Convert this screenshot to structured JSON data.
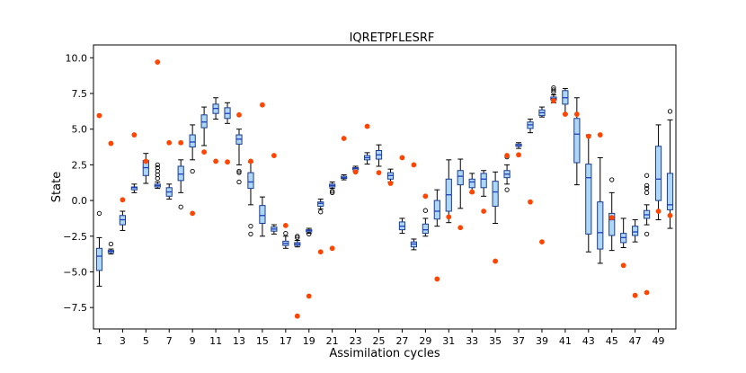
{
  "chart_data": {
    "type": "box",
    "title": "IQRETPFLESRF",
    "xlabel": "Assimilation cycles",
    "ylabel": "State",
    "ylim": [
      -9.0,
      10.9
    ],
    "xlim": [
      0.5,
      50.5
    ],
    "yticks": [
      -7.5,
      -5.0,
      -2.5,
      0.0,
      2.5,
      5.0,
      7.5,
      10.0
    ],
    "ytick_labels": [
      "−7.5",
      "−5.0",
      "−2.5",
      "0.0",
      "2.5",
      "5.0",
      "7.5",
      "10.0"
    ],
    "xticks": [
      1,
      3,
      5,
      7,
      9,
      11,
      13,
      15,
      17,
      19,
      21,
      23,
      25,
      27,
      29,
      31,
      33,
      35,
      37,
      39,
      41,
      43,
      45,
      47,
      49
    ],
    "xtick_labels": [
      "1",
      "3",
      "5",
      "7",
      "9",
      "11",
      "13",
      "15",
      "17",
      "19",
      "21",
      "23",
      "25",
      "27",
      "29",
      "31",
      "33",
      "35",
      "37",
      "39",
      "41",
      "43",
      "45",
      "47",
      "49"
    ],
    "colors": {
      "box_fill": "#aed6f5",
      "box_edge": "#1c3d8f",
      "median": "#1f3fbf",
      "whisker": "#000000",
      "truth": "#ff4500"
    },
    "boxes": [
      {
        "cycle": 1,
        "whislo": -6.0,
        "q1": -4.9,
        "median": -3.9,
        "q3": -3.35,
        "whishi": -2.6,
        "fliers": [
          -0.9
        ]
      },
      {
        "cycle": 2,
        "whislo": -3.75,
        "q1": -3.65,
        "median": -3.55,
        "q3": -3.5,
        "whishi": -3.4,
        "fliers": [
          -3.05
        ]
      },
      {
        "cycle": 3,
        "whislo": -2.1,
        "q1": -1.7,
        "median": -1.35,
        "q3": -1.05,
        "whishi": -0.75,
        "fliers": []
      },
      {
        "cycle": 4,
        "whislo": 0.55,
        "q1": 0.75,
        "median": 0.9,
        "q3": 0.95,
        "whishi": 1.15,
        "fliers": []
      },
      {
        "cycle": 5,
        "whislo": 1.2,
        "q1": 1.75,
        "median": 2.3,
        "q3": 2.8,
        "whishi": 3.3,
        "fliers": []
      },
      {
        "cycle": 6,
        "whislo": 0.85,
        "q1": 0.95,
        "median": 1.05,
        "q3": 1.15,
        "whishi": 1.3,
        "fliers": [
          1.55,
          1.8,
          2.05,
          2.3,
          2.5
        ]
      },
      {
        "cycle": 7,
        "whislo": 0.1,
        "q1": 0.3,
        "median": 0.6,
        "q3": 0.9,
        "whishi": 1.15,
        "fliers": []
      },
      {
        "cycle": 8,
        "whislo": 0.55,
        "q1": 1.4,
        "median": 1.85,
        "q3": 2.4,
        "whishi": 2.85,
        "fliers": [
          -0.45
        ]
      },
      {
        "cycle": 9,
        "whislo": 2.85,
        "q1": 3.75,
        "median": 4.1,
        "q3": 4.6,
        "whishi": 5.3,
        "fliers": [
          2.05
        ]
      },
      {
        "cycle": 10,
        "whislo": 3.85,
        "q1": 5.1,
        "median": 5.5,
        "q3": 6.0,
        "whishi": 6.55,
        "fliers": []
      },
      {
        "cycle": 11,
        "whislo": 5.7,
        "q1": 6.1,
        "median": 6.45,
        "q3": 6.75,
        "whishi": 7.2,
        "fliers": []
      },
      {
        "cycle": 12,
        "whislo": 5.4,
        "q1": 5.75,
        "median": 6.1,
        "q3": 6.5,
        "whishi": 6.85,
        "fliers": []
      },
      {
        "cycle": 13,
        "whislo": 2.5,
        "q1": 3.95,
        "median": 4.3,
        "q3": 4.6,
        "whishi": 5.0,
        "fliers": [
          1.3,
          1.95,
          2.05
        ]
      },
      {
        "cycle": 14,
        "whislo": -0.3,
        "q1": 0.85,
        "median": 1.3,
        "q3": 1.95,
        "whishi": 2.7,
        "fliers": [
          -1.8,
          -2.35
        ]
      },
      {
        "cycle": 15,
        "whislo": -2.5,
        "q1": -1.6,
        "median": -1.05,
        "q3": -0.35,
        "whishi": 0.25,
        "fliers": []
      },
      {
        "cycle": 16,
        "whislo": -2.35,
        "q1": -2.15,
        "median": -2.0,
        "q3": -1.85,
        "whishi": -1.7,
        "fliers": []
      },
      {
        "cycle": 17,
        "whislo": -3.35,
        "q1": -3.15,
        "median": -3.0,
        "q3": -2.85,
        "whishi": -2.5,
        "fliers": [
          -2.3
        ]
      },
      {
        "cycle": 18,
        "whislo": -3.25,
        "q1": -3.15,
        "median": -3.05,
        "q3": -2.95,
        "whishi": -2.8,
        "fliers": [
          -2.6,
          -2.5
        ]
      },
      {
        "cycle": 19,
        "whislo": -2.3,
        "q1": -2.2,
        "median": -2.1,
        "q3": -2.05,
        "whishi": -1.95,
        "fliers": [
          -2.35
        ]
      },
      {
        "cycle": 20,
        "whislo": -0.6,
        "q1": -0.4,
        "median": -0.2,
        "q3": -0.1,
        "whishi": 0.1,
        "fliers": [
          -0.8
        ]
      },
      {
        "cycle": 21,
        "whislo": 0.85,
        "q1": 0.95,
        "median": 1.05,
        "q3": 1.15,
        "whishi": 1.3,
        "fliers": [
          0.55,
          0.65
        ]
      },
      {
        "cycle": 22,
        "whislo": 1.45,
        "q1": 1.55,
        "median": 1.6,
        "q3": 1.7,
        "whishi": 1.8,
        "fliers": []
      },
      {
        "cycle": 23,
        "whislo": 2.05,
        "q1": 2.15,
        "median": 2.25,
        "q3": 2.3,
        "whishi": 2.4,
        "fliers": []
      },
      {
        "cycle": 24,
        "whislo": 2.55,
        "q1": 2.85,
        "median": 3.0,
        "q3": 3.15,
        "whishi": 3.35,
        "fliers": []
      },
      {
        "cycle": 25,
        "whislo": 2.4,
        "q1": 2.9,
        "median": 3.2,
        "q3": 3.5,
        "whishi": 3.9,
        "fliers": []
      },
      {
        "cycle": 26,
        "whislo": 1.3,
        "q1": 1.5,
        "median": 1.75,
        "q3": 1.95,
        "whishi": 2.2,
        "fliers": []
      },
      {
        "cycle": 27,
        "whislo": -2.3,
        "q1": -2.05,
        "median": -1.8,
        "q3": -1.5,
        "whishi": -1.25,
        "fliers": []
      },
      {
        "cycle": 28,
        "whislo": -3.45,
        "q1": -3.25,
        "median": -3.05,
        "q3": -2.9,
        "whishi": -2.7,
        "fliers": []
      },
      {
        "cycle": 29,
        "whislo": -2.5,
        "q1": -2.3,
        "median": -2.05,
        "q3": -1.65,
        "whishi": -1.25,
        "fliers": [
          -0.7
        ]
      },
      {
        "cycle": 30,
        "whislo": -1.8,
        "q1": -1.3,
        "median": -0.75,
        "q3": 0.0,
        "whishi": 0.75,
        "fliers": []
      },
      {
        "cycle": 31,
        "whislo": -1.55,
        "q1": -0.75,
        "median": 0.4,
        "q3": 1.5,
        "whishi": 2.85,
        "fliers": []
      },
      {
        "cycle": 32,
        "whislo": -0.55,
        "q1": 1.1,
        "median": 1.7,
        "q3": 2.1,
        "whishi": 2.9,
        "fliers": []
      },
      {
        "cycle": 33,
        "whislo": 0.55,
        "q1": 0.9,
        "median": 1.3,
        "q3": 1.5,
        "whishi": 1.9,
        "fliers": []
      },
      {
        "cycle": 34,
        "whislo": 0.3,
        "q1": 0.9,
        "median": 1.5,
        "q3": 1.9,
        "whishi": 2.1,
        "fliers": []
      },
      {
        "cycle": 35,
        "whislo": -1.6,
        "q1": -0.4,
        "median": 0.6,
        "q3": 1.35,
        "whishi": 2.0,
        "fliers": []
      },
      {
        "cycle": 36,
        "whislo": 1.15,
        "q1": 1.6,
        "median": 1.85,
        "q3": 2.1,
        "whishi": 2.5,
        "fliers": [
          0.75,
          3.05
        ]
      },
      {
        "cycle": 37,
        "whislo": 3.65,
        "q1": 3.8,
        "median": 3.85,
        "q3": 3.95,
        "whishi": 4.05,
        "fliers": []
      },
      {
        "cycle": 38,
        "whislo": 4.75,
        "q1": 5.05,
        "median": 5.3,
        "q3": 5.5,
        "whishi": 5.7,
        "fliers": []
      },
      {
        "cycle": 39,
        "whislo": 5.85,
        "q1": 5.95,
        "median": 6.15,
        "q3": 6.35,
        "whishi": 6.55,
        "fliers": []
      },
      {
        "cycle": 40,
        "whislo": 6.85,
        "q1": 7.05,
        "median": 7.15,
        "q3": 7.25,
        "whishi": 7.4,
        "fliers": [
          7.6,
          7.75,
          7.9
        ]
      },
      {
        "cycle": 41,
        "whislo": 6.05,
        "q1": 6.75,
        "median": 7.2,
        "q3": 7.7,
        "whishi": 7.85,
        "fliers": []
      },
      {
        "cycle": 42,
        "whislo": 1.1,
        "q1": 2.65,
        "median": 4.65,
        "q3": 5.75,
        "whishi": 7.2,
        "fliers": []
      },
      {
        "cycle": 43,
        "whislo": -3.6,
        "q1": -2.35,
        "median": 1.6,
        "q3": 2.55,
        "whishi": 4.6,
        "fliers": []
      },
      {
        "cycle": 44,
        "whislo": -4.4,
        "q1": -3.4,
        "median": -2.25,
        "q3": -0.1,
        "whishi": 3.0,
        "fliers": []
      },
      {
        "cycle": 45,
        "whislo": -3.5,
        "q1": -2.45,
        "median": -1.35,
        "q3": -0.9,
        "whishi": 0.55,
        "fliers": [
          1.45
        ]
      },
      {
        "cycle": 46,
        "whislo": -3.3,
        "q1": -2.95,
        "median": -2.6,
        "q3": -2.3,
        "whishi": -1.25,
        "fliers": []
      },
      {
        "cycle": 47,
        "whislo": -2.9,
        "q1": -2.45,
        "median": -2.2,
        "q3": -1.8,
        "whishi": -1.35,
        "fliers": []
      },
      {
        "cycle": 48,
        "whislo": -1.7,
        "q1": -1.25,
        "median": -1.0,
        "q3": -0.7,
        "whishi": -0.3,
        "fliers": [
          0.55,
          0.85,
          1.05,
          1.75,
          -2.35
        ]
      },
      {
        "cycle": 49,
        "whislo": -1.35,
        "q1": 0.0,
        "median": 1.5,
        "q3": 3.8,
        "whishi": 5.3,
        "fliers": []
      },
      {
        "cycle": 50,
        "whislo": -1.95,
        "q1": -0.65,
        "median": -0.3,
        "q3": 1.9,
        "whishi": 5.65,
        "fliers": [
          6.25
        ]
      }
    ],
    "truth": [
      {
        "cycle": 1,
        "value": 5.95
      },
      {
        "cycle": 2,
        "value": 4.0
      },
      {
        "cycle": 3,
        "value": 0.05
      },
      {
        "cycle": 4,
        "value": 4.6
      },
      {
        "cycle": 5,
        "value": 2.75
      },
      {
        "cycle": 6,
        "value": 9.7
      },
      {
        "cycle": 7,
        "value": 4.05
      },
      {
        "cycle": 8,
        "value": 4.05
      },
      {
        "cycle": 9,
        "value": -0.9
      },
      {
        "cycle": 10,
        "value": 3.4
      },
      {
        "cycle": 11,
        "value": 2.75
      },
      {
        "cycle": 12,
        "value": 2.7
      },
      {
        "cycle": 13,
        "value": 6.0
      },
      {
        "cycle": 14,
        "value": 2.75
      },
      {
        "cycle": 15,
        "value": 6.7
      },
      {
        "cycle": 16,
        "value": 3.15
      },
      {
        "cycle": 17,
        "value": -1.75
      },
      {
        "cycle": 18,
        "value": -8.1
      },
      {
        "cycle": 19,
        "value": -6.7
      },
      {
        "cycle": 20,
        "value": -3.6
      },
      {
        "cycle": 21,
        "value": -3.35
      },
      {
        "cycle": 22,
        "value": 4.35
      },
      {
        "cycle": 23,
        "value": 2.0
      },
      {
        "cycle": 24,
        "value": 5.2
      },
      {
        "cycle": 25,
        "value": 1.95
      },
      {
        "cycle": 26,
        "value": 1.2
      },
      {
        "cycle": 27,
        "value": 3.0
      },
      {
        "cycle": 28,
        "value": 2.5
      },
      {
        "cycle": 29,
        "value": 0.3
      },
      {
        "cycle": 30,
        "value": -5.5
      },
      {
        "cycle": 31,
        "value": -1.15
      },
      {
        "cycle": 32,
        "value": -1.9
      },
      {
        "cycle": 33,
        "value": 0.6
      },
      {
        "cycle": 34,
        "value": -0.75
      },
      {
        "cycle": 35,
        "value": -4.25
      },
      {
        "cycle": 36,
        "value": 3.15
      },
      {
        "cycle": 37,
        "value": 3.2
      },
      {
        "cycle": 38,
        "value": -0.1
      },
      {
        "cycle": 39,
        "value": -2.9
      },
      {
        "cycle": 40,
        "value": 7.0
      },
      {
        "cycle": 41,
        "value": 6.05
      },
      {
        "cycle": 42,
        "value": 6.05
      },
      {
        "cycle": 43,
        "value": 4.5
      },
      {
        "cycle": 44,
        "value": 4.6
      },
      {
        "cycle": 45,
        "value": -1.2
      },
      {
        "cycle": 46,
        "value": -4.55
      },
      {
        "cycle": 47,
        "value": -6.65
      },
      {
        "cycle": 48,
        "value": -6.45
      },
      {
        "cycle": 49,
        "value": -0.75
      },
      {
        "cycle": 50,
        "value": -1.05
      }
    ]
  }
}
